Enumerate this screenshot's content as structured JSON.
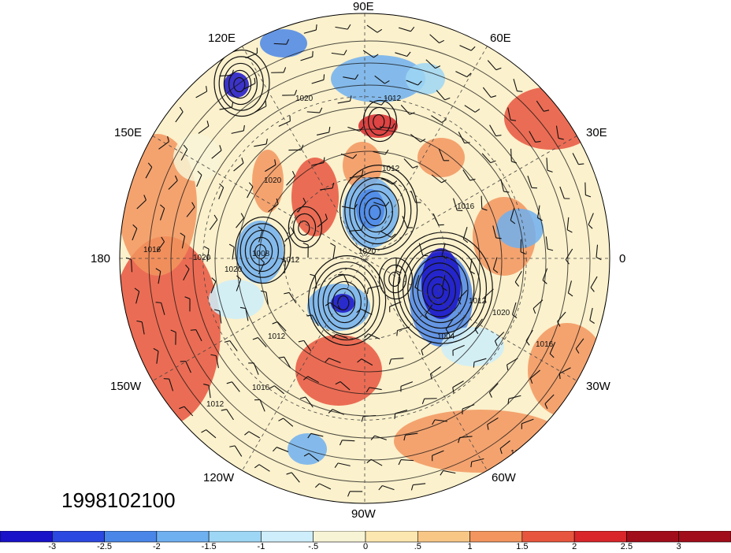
{
  "map": {
    "projection": "north-polar-stereographic",
    "field": "anomaly shading with sea-level pressure contours and wind barbs",
    "date_stamp": "1998102100",
    "longitude_labels": [
      "90E",
      "60E",
      "30E",
      "0",
      "30W",
      "60W",
      "90W",
      "120W",
      "150W",
      "180",
      "150E",
      "120E"
    ],
    "contour_labels": [
      "1012",
      "1020",
      "1012",
      "1020",
      "1008",
      "1012",
      "1020",
      "1016",
      "1020",
      "1020",
      "1012",
      "1016",
      "1004",
      "1012",
      "1020",
      "1016",
      "1016",
      "1012",
      "1012",
      "1012"
    ]
  },
  "colorbar": {
    "ticks": [
      "-3",
      "-2.5",
      "-2",
      "-1.5",
      "-1",
      "-.5",
      "0",
      ".5",
      "1",
      "1.5",
      "2",
      "2.5",
      "3"
    ],
    "colors": [
      "#1a12c8",
      "#2b48e0",
      "#4a86e8",
      "#6fb0f0",
      "#9ed6f5",
      "#cdeefa",
      "#f7f4d6",
      "#fce7b0",
      "#f8c786",
      "#f2955e",
      "#e8553e",
      "#d8262a",
      "#a10d1a",
      "#a10d1a"
    ]
  },
  "palette": {
    "land_bg": "#fbf1cc",
    "contour": "#111111",
    "grid": "#444444"
  }
}
